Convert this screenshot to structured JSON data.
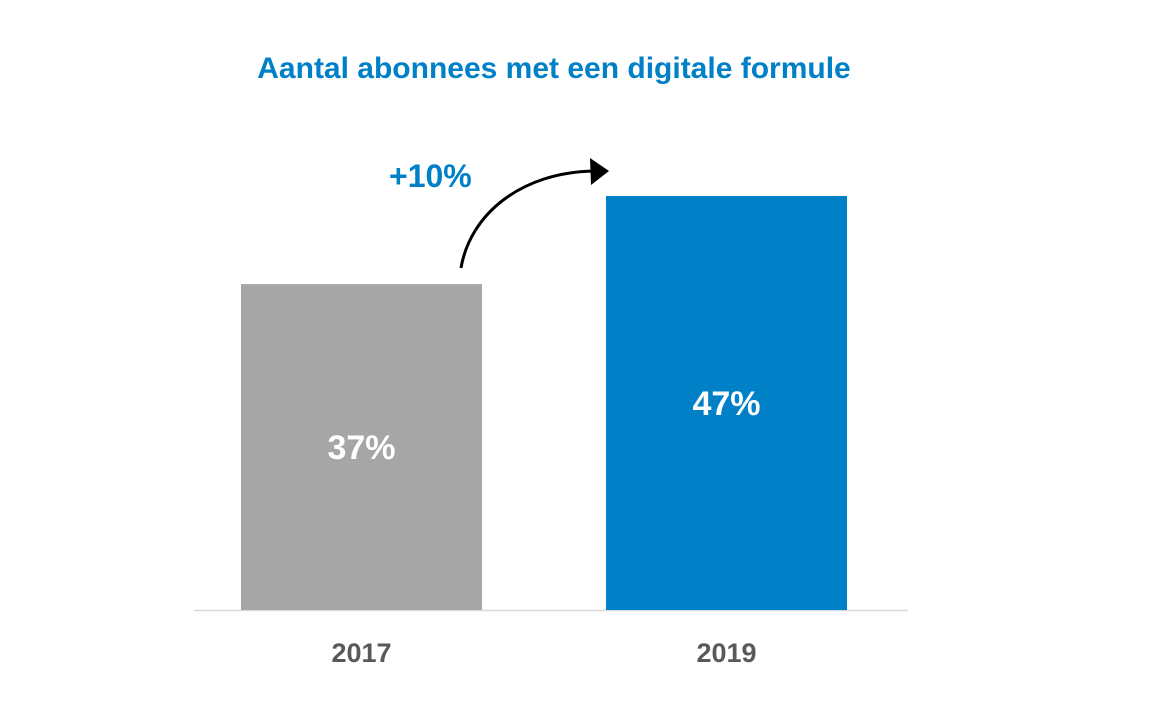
{
  "chart_data": {
    "type": "bar",
    "title": "Aantal abonnees met een digitale formule",
    "categories": [
      "2017",
      "2019"
    ],
    "values": [
      37,
      47
    ],
    "data_labels": [
      "37%",
      "47%"
    ],
    "colors": [
      "#A6A6A6",
      "#0080C6"
    ],
    "annotation": "+10%",
    "ylim": [
      0,
      47
    ],
    "grid": false,
    "xlabel": "",
    "ylabel": ""
  }
}
